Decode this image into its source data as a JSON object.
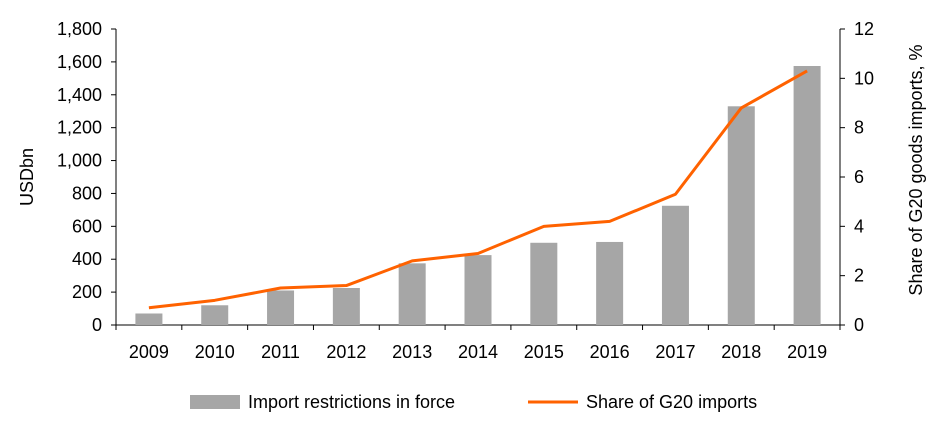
{
  "chart_data": {
    "type": "bar",
    "categories": [
      "2009",
      "2010",
      "2011",
      "2012",
      "2013",
      "2014",
      "2015",
      "2016",
      "2017",
      "2018",
      "2019"
    ],
    "series": [
      {
        "name": "Import restrictions in force",
        "type": "bar",
        "axis": "left",
        "values": [
          70,
          120,
          210,
          225,
          375,
          425,
          500,
          505,
          725,
          1330,
          1575
        ]
      },
      {
        "name": "Share of G20 imports",
        "type": "line",
        "axis": "right",
        "values": [
          0.7,
          1.0,
          1.5,
          1.6,
          2.6,
          2.9,
          4.0,
          4.2,
          5.3,
          8.8,
          10.3
        ]
      }
    ],
    "ylabel": "USDbn",
    "ylim": [
      0,
      1800
    ],
    "yticks": [
      "0",
      "200",
      "400",
      "600",
      "800",
      "1,000",
      "1,200",
      "1,400",
      "1,600",
      "1,800"
    ],
    "y2label": "Share of G20 goods imports, %",
    "y2lim": [
      0,
      12
    ],
    "y2ticks": [
      "0",
      "2",
      "4",
      "6",
      "8",
      "10",
      "12"
    ],
    "legend": "bottom",
    "grid": false,
    "colors": {
      "bar": "#a6a6a6",
      "line": "#ff6200",
      "axis": "#000000"
    }
  }
}
